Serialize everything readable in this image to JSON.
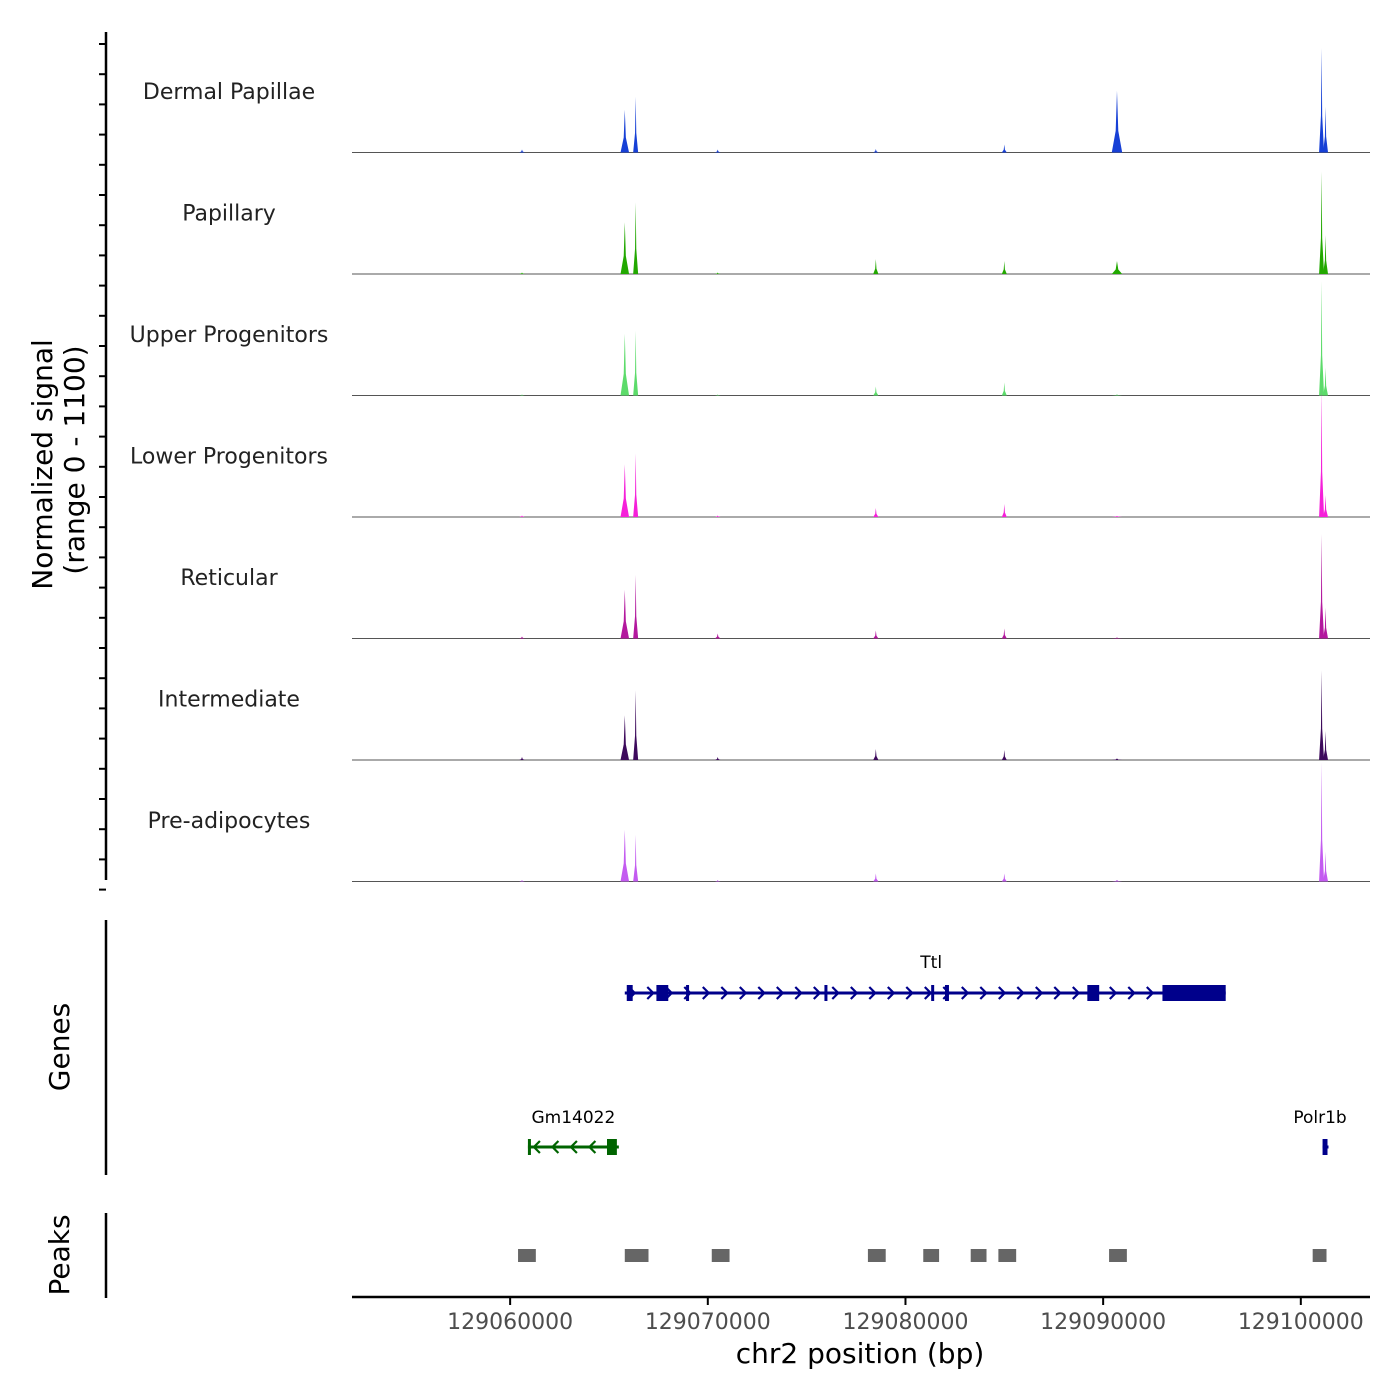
{
  "chart_data": {
    "type": "area",
    "x_axis": {
      "label": "chr2 position (bp)",
      "range": [
        129052000,
        129103500
      ],
      "ticks": [
        {
          "value": 129060000,
          "label": "129060000"
        },
        {
          "value": 129070000,
          "label": "129070000"
        },
        {
          "value": 129080000,
          "label": "129080000"
        },
        {
          "value": 129090000,
          "label": "129090000"
        },
        {
          "value": 129100000,
          "label": "129100000"
        }
      ]
    },
    "y_axis": {
      "label_line1": "Normalized signal",
      "label_line2": "(range 0 - 1100)",
      "range": [
        0,
        1100
      ]
    },
    "signal_peaks": [
      {
        "pos": 129060600,
        "width": 120
      },
      {
        "pos": 129065800,
        "width": 180
      },
      {
        "pos": 129066350,
        "width": 90
      },
      {
        "pos": 129070500,
        "width": 120
      },
      {
        "pos": 129078500,
        "width": 110
      },
      {
        "pos": 129085000,
        "width": 100
      },
      {
        "pos": 129090700,
        "width": 220
      },
      {
        "pos": 129101050,
        "width": 70
      },
      {
        "pos": 129101250,
        "width": 50
      }
    ],
    "series": [
      {
        "name": "Dermal Papillae",
        "color": "#1740d6",
        "heights": [
          30,
          430,
          560,
          30,
          35,
          80,
          620,
          1050,
          460
        ]
      },
      {
        "name": "Papillary",
        "color": "#22a800",
        "heights": [
          15,
          520,
          720,
          15,
          150,
          130,
          130,
          1030,
          390
        ]
      },
      {
        "name": "Upper Progenitors",
        "color": "#5cdb6a",
        "heights": [
          10,
          620,
          650,
          10,
          90,
          130,
          10,
          1150,
          280
        ]
      },
      {
        "name": "Lower Progenitors",
        "color": "#f520d9",
        "heights": [
          15,
          530,
          640,
          15,
          90,
          130,
          10,
          1300,
          220
        ]
      },
      {
        "name": "Reticular",
        "color": "#b3189e",
        "heights": [
          20,
          490,
          640,
          50,
          80,
          100,
          10,
          1050,
          310
        ]
      },
      {
        "name": "Intermediate",
        "color": "#3d0a5c",
        "heights": [
          30,
          450,
          700,
          30,
          110,
          100,
          15,
          900,
          290
        ]
      },
      {
        "name": "Pre-adipocytes",
        "color": "#c35bf0",
        "heights": [
          15,
          520,
          470,
          15,
          80,
          80,
          15,
          1200,
          300
        ]
      }
    ],
    "genes": [
      {
        "name": "Ttl",
        "color": "#00008b",
        "strand": "+",
        "row": 1,
        "start": 129065800,
        "end": 129096200,
        "exons": [
          [
            129065900,
            129066200
          ],
          [
            129067400,
            129068000
          ],
          [
            129068900,
            129068950
          ],
          [
            129075900,
            129076050
          ],
          [
            129081300,
            129081400
          ],
          [
            129082000,
            129082200
          ],
          [
            129089200,
            129089800
          ],
          [
            129093000,
            129096200
          ]
        ]
      },
      {
        "name": "Gm14022",
        "color": "#006400",
        "strand": "-",
        "row": 2,
        "start": 129060900,
        "end": 129065500,
        "exons": [
          [
            129060900,
            129061000
          ],
          [
            129064900,
            129065400
          ]
        ]
      },
      {
        "name": "Polr1b",
        "color": "#00008b",
        "strand": "+",
        "row": 2,
        "start": 129101100,
        "end": 129101400,
        "exons": [
          [
            129101100,
            129101350
          ]
        ]
      }
    ],
    "genes_title": "Genes",
    "peaks_title": "Peaks",
    "peaks": [
      [
        129060400,
        129061300
      ],
      [
        129065800,
        129067000
      ],
      [
        129070200,
        129071100
      ],
      [
        129078100,
        129079000
      ],
      [
        129080900,
        129081700
      ],
      [
        129083300,
        129084100
      ],
      [
        129084700,
        129085600
      ],
      [
        129090300,
        129091200
      ],
      [
        129100600,
        129101300
      ]
    ]
  }
}
